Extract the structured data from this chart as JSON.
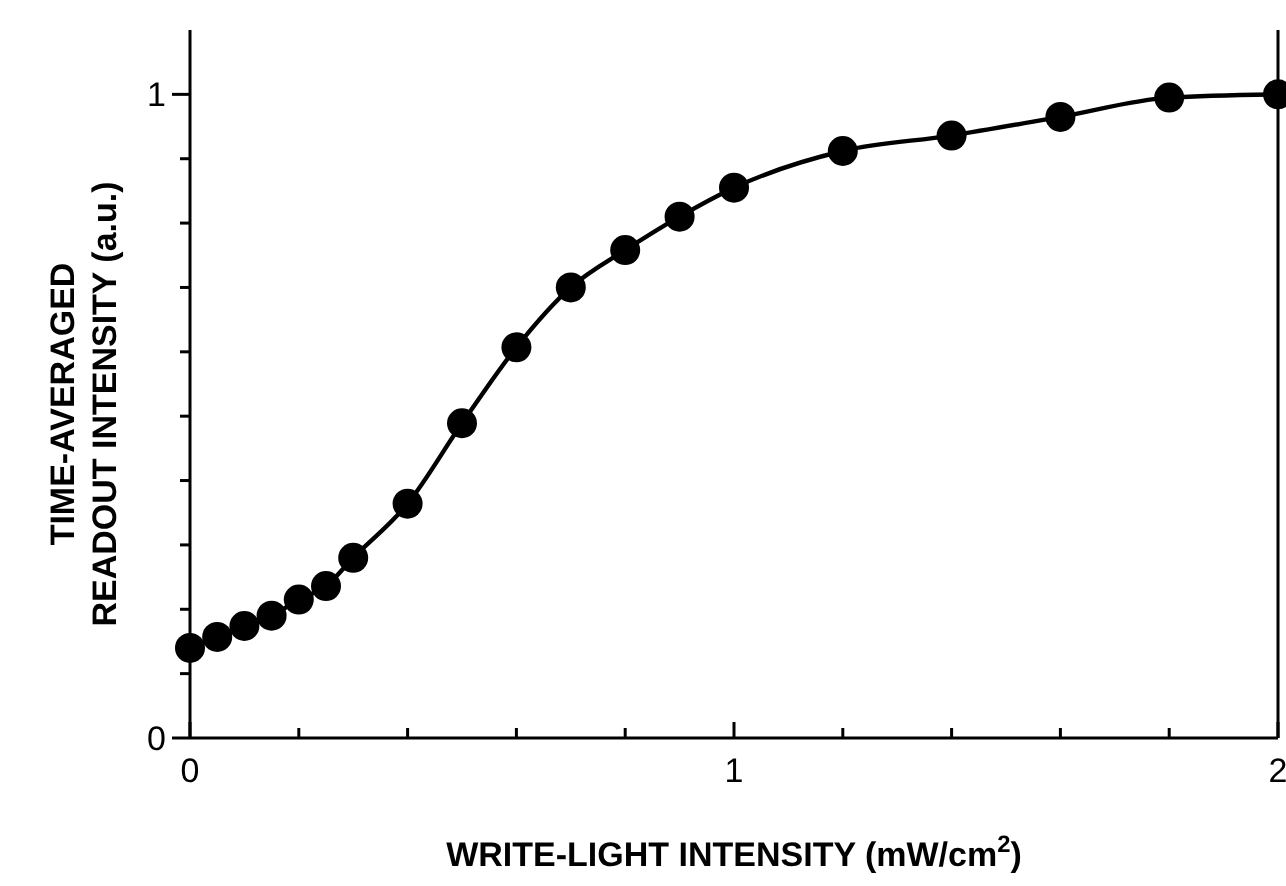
{
  "chart_data": {
    "type": "line",
    "xlabel": "WRITE-LIGHT INTENSITY (mW/cm$^{2}$)",
    "ylabel": "TIME-AVERAGED READOUT INTENSITY (a.u.)",
    "x": [
      0,
      0.05,
      0.1,
      0.15,
      0.2,
      0.25,
      0.3,
      0.4,
      0.5,
      0.6,
      0.7,
      0.8,
      0.9,
      1.0,
      1.2,
      1.4,
      1.6,
      1.8,
      2.0
    ],
    "series": [
      {
        "color": "#000000",
        "values": [
          0.14,
          0.157,
          0.174,
          0.19,
          0.215,
          0.236,
          0.28,
          0.364,
          0.489,
          0.607,
          0.7,
          0.758,
          0.81,
          0.855,
          0.912,
          0.936,
          0.965,
          0.995,
          1.0
        ]
      }
    ],
    "xlim": [
      0,
      2
    ],
    "ylim": [
      0,
      1.1
    ],
    "xticks": [
      0,
      {
        "value": 0.2,
        "label": null
      },
      {
        "value": 0.4,
        "label": null
      },
      {
        "value": 0.6,
        "label": null
      },
      {
        "value": 0.8,
        "label": null
      },
      1,
      {
        "value": 1.2,
        "label": null
      },
      {
        "value": 1.4,
        "label": null
      },
      {
        "value": 1.6,
        "label": null
      },
      {
        "value": 1.8,
        "label": null
      },
      2
    ],
    "yticks": [
      0,
      {
        "value": 0.1,
        "label": null
      },
      {
        "value": 0.2,
        "label": null
      },
      {
        "value": 0.3,
        "label": null
      },
      {
        "value": 0.4,
        "label": null
      },
      {
        "value": 0.5,
        "label": null
      },
      {
        "value": 0.6,
        "label": null
      },
      {
        "value": 0.7,
        "label": null
      },
      {
        "value": 0.8,
        "label": null
      },
      {
        "value": 0.9,
        "label": null
      },
      1
    ],
    "marker": "circle",
    "line_style": "solid"
  }
}
